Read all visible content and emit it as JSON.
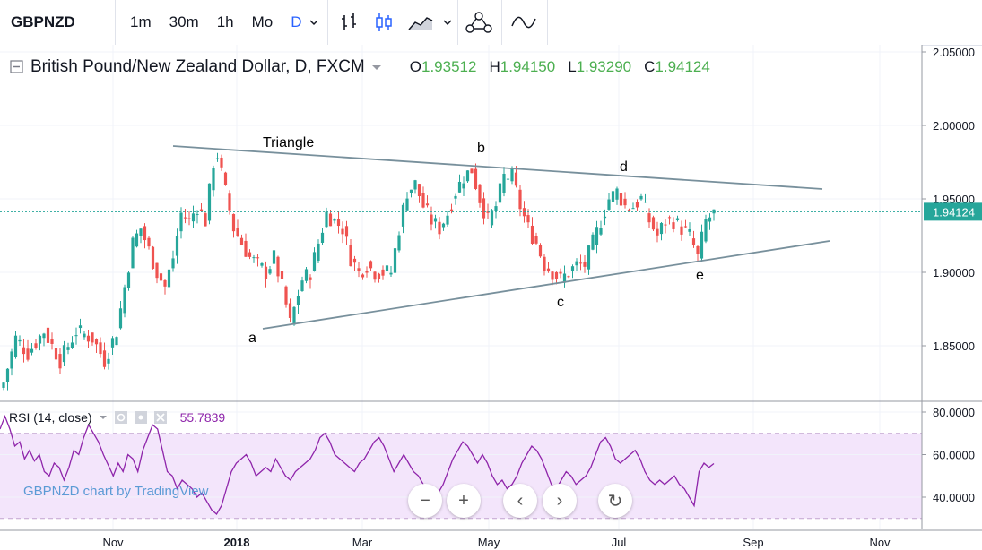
{
  "toolbar": {
    "symbol": "GBPNZD",
    "intervals": [
      "1m",
      "30m",
      "1h",
      "Mo",
      "D"
    ],
    "active_interval": "D",
    "icons": [
      "chevron-down-icon",
      "bar-chart-icon",
      "candles-icon",
      "area-chart-icon",
      "chevron-down-icon",
      "indicators-icon",
      "compare-icon"
    ]
  },
  "legend": {
    "title": "British Pound/New Zealand Dollar, D, FXCM",
    "o_label": "O",
    "o_value": "1.93512",
    "h_label": "H",
    "h_value": "1.94150",
    "l_label": "L",
    "l_value": "1.93290",
    "c_label": "C",
    "c_value": "1.94124"
  },
  "rsi_legend": {
    "label": "RSI (14, close)",
    "value": "55.7839"
  },
  "watermark": "GBPNZD chart by TradingView",
  "nav": {
    "zoom_out": "−",
    "zoom_in": "+",
    "scroll_left": "‹",
    "scroll_right": "›",
    "reset": "↻"
  },
  "chart_data": [
    {
      "type": "candlestick",
      "price_axis": [
        "2.05000",
        "2.00000",
        "1.95000",
        "1.90000",
        "1.85000"
      ],
      "ylim": [
        1.815,
        2.055
      ],
      "last_price": "1.94124",
      "x_ticks": [
        "Nov",
        "2018",
        "Mar",
        "May",
        "Jul",
        "Sep",
        "Nov"
      ],
      "annotations": {
        "triangle": "Triangle",
        "waves": [
          "a",
          "b",
          "c",
          "d",
          "e"
        ]
      },
      "close_path": [
        [
          0,
          1.825
        ],
        [
          3,
          1.855
        ],
        [
          6,
          1.845
        ],
        [
          10,
          1.86
        ],
        [
          14,
          1.84
        ],
        [
          18,
          1.86
        ],
        [
          22,
          1.855
        ],
        [
          25,
          1.84
        ],
        [
          28,
          1.86
        ],
        [
          32,
          1.92
        ],
        [
          34,
          1.93
        ],
        [
          36,
          1.915
        ],
        [
          38,
          1.9
        ],
        [
          40,
          1.89
        ],
        [
          42,
          1.91
        ],
        [
          44,
          1.94
        ],
        [
          46,
          1.935
        ],
        [
          48,
          1.945
        ],
        [
          50,
          1.935
        ],
        [
          52,
          1.975
        ],
        [
          53,
          1.98
        ],
        [
          55,
          1.955
        ],
        [
          57,
          1.93
        ],
        [
          59,
          1.92
        ],
        [
          61,
          1.91
        ],
        [
          63,
          1.905
        ],
        [
          65,
          1.9
        ],
        [
          67,
          1.91
        ],
        [
          69,
          1.89
        ],
        [
          71,
          1.865
        ],
        [
          72,
          1.875
        ],
        [
          74,
          1.895
        ],
        [
          76,
          1.9
        ],
        [
          78,
          1.92
        ],
        [
          80,
          1.94
        ],
        [
          82,
          1.935
        ],
        [
          84,
          1.93
        ],
        [
          86,
          1.91
        ],
        [
          88,
          1.9
        ],
        [
          90,
          1.905
        ],
        [
          92,
          1.9
        ],
        [
          94,
          1.9
        ],
        [
          96,
          1.9
        ],
        [
          98,
          1.93
        ],
        [
          100,
          1.955
        ],
        [
          102,
          1.96
        ],
        [
          104,
          1.945
        ],
        [
          106,
          1.935
        ],
        [
          108,
          1.93
        ],
        [
          110,
          1.94
        ],
        [
          112,
          1.955
        ],
        [
          114,
          1.965
        ],
        [
          116,
          1.97
        ],
        [
          118,
          1.95
        ],
        [
          120,
          1.935
        ],
        [
          122,
          1.945
        ],
        [
          124,
          1.965
        ],
        [
          126,
          1.965
        ],
        [
          128,
          1.945
        ],
        [
          130,
          1.93
        ],
        [
          132,
          1.92
        ],
        [
          134,
          1.905
        ],
        [
          136,
          1.9
        ],
        [
          138,
          1.895
        ],
        [
          140,
          1.9
        ],
        [
          142,
          1.905
        ],
        [
          144,
          1.905
        ],
        [
          146,
          1.92
        ],
        [
          148,
          1.935
        ],
        [
          150,
          1.95
        ],
        [
          152,
          1.955
        ],
        [
          154,
          1.945
        ],
        [
          156,
          1.945
        ],
        [
          158,
          1.95
        ],
        [
          160,
          1.935
        ],
        [
          162,
          1.925
        ],
        [
          164,
          1.935
        ],
        [
          166,
          1.935
        ],
        [
          168,
          1.93
        ],
        [
          170,
          1.925
        ],
        [
          172,
          1.91
        ],
        [
          174,
          1.935
        ],
        [
          176,
          1.94
        ]
      ]
    },
    {
      "type": "line",
      "name": "RSI (14, close)",
      "y_axis": [
        "80.0000",
        "60.0000",
        "40.0000"
      ],
      "ylim": [
        25,
        85
      ],
      "bands": [
        30,
        70
      ],
      "last_value": 55.7839,
      "values": [
        72,
        78,
        72,
        64,
        66,
        58,
        62,
        57,
        60,
        52,
        50,
        56,
        54,
        48,
        54,
        62,
        60,
        68,
        74,
        70,
        66,
        60,
        55,
        50,
        56,
        52,
        60,
        58,
        52,
        62,
        68,
        74,
        72,
        62,
        52,
        50,
        44,
        48,
        46,
        44,
        40,
        42,
        38,
        34,
        32,
        36,
        44,
        52,
        56,
        58,
        60,
        56,
        50,
        52,
        54,
        52,
        58,
        54,
        50,
        48,
        52,
        54,
        56,
        58,
        62,
        68,
        70,
        66,
        60,
        58,
        56,
        54,
        52,
        56,
        58,
        62,
        66,
        68,
        64,
        58,
        52,
        56,
        60,
        56,
        52,
        50,
        46,
        42,
        44,
        42,
        46,
        52,
        58,
        62,
        66,
        64,
        60,
        56,
        60,
        56,
        50,
        46,
        48,
        44,
        46,
        50,
        56,
        60,
        64,
        62,
        58,
        52,
        46,
        44,
        48,
        52,
        50,
        46,
        48,
        50,
        54,
        60,
        66,
        68,
        64,
        58,
        56,
        58,
        60,
        62,
        58,
        52,
        48,
        46,
        48,
        46,
        48,
        50,
        46,
        44,
        40,
        36,
        52,
        56,
        54,
        55.78
      ]
    }
  ]
}
